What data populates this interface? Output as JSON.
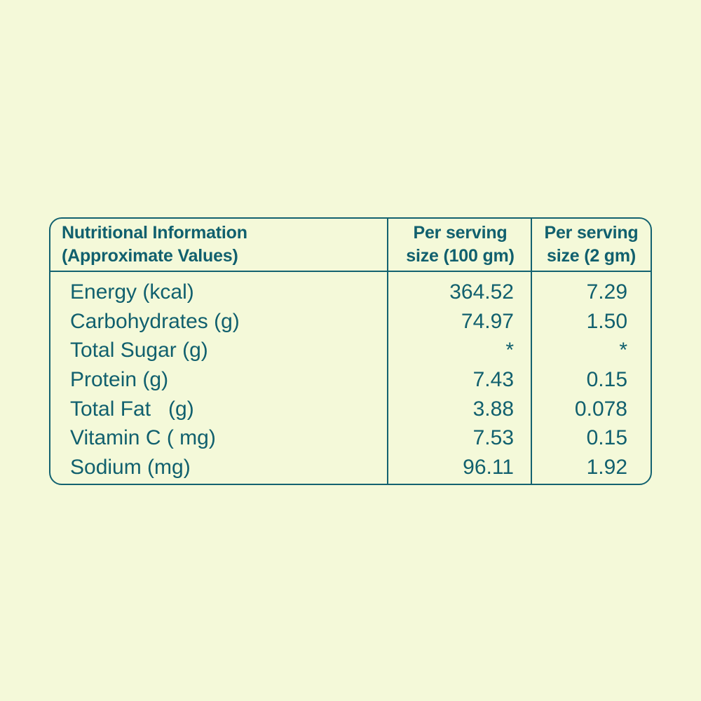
{
  "page": {
    "background_color": "#f4f9d9",
    "text_color": "#11606e",
    "border_color": "#136270"
  },
  "table": {
    "header": {
      "info": {
        "line1": "Nutritional Information",
        "line2": "(Approximate Values)"
      },
      "per_serving_100": {
        "line1": "Per serving",
        "line2": "size (100 gm)"
      },
      "per_serving_2": {
        "line1": "Per serving",
        "line2": "size (2 gm)"
      }
    },
    "rows": [
      {
        "label": "Energy (kcal)",
        "per_100gm": "364.52",
        "per_2gm": "7.29"
      },
      {
        "label": "Carbohydrates (g)",
        "per_100gm": "74.97",
        "per_2gm": "1.50"
      },
      {
        "label": "Total Sugar (g)",
        "per_100gm": "*",
        "per_2gm": "*"
      },
      {
        "label": "Protein (g)",
        "per_100gm": "7.43",
        "per_2gm": "0.15"
      },
      {
        "label": "Total Fat   (g)",
        "per_100gm": "3.88",
        "per_2gm": "0.078"
      },
      {
        "label": "Vitamin C ( mg)",
        "per_100gm": "7.53",
        "per_2gm": "0.15"
      },
      {
        "label": "Sodium (mg)",
        "per_100gm": "96.11",
        "per_2gm": "1.92"
      }
    ]
  }
}
